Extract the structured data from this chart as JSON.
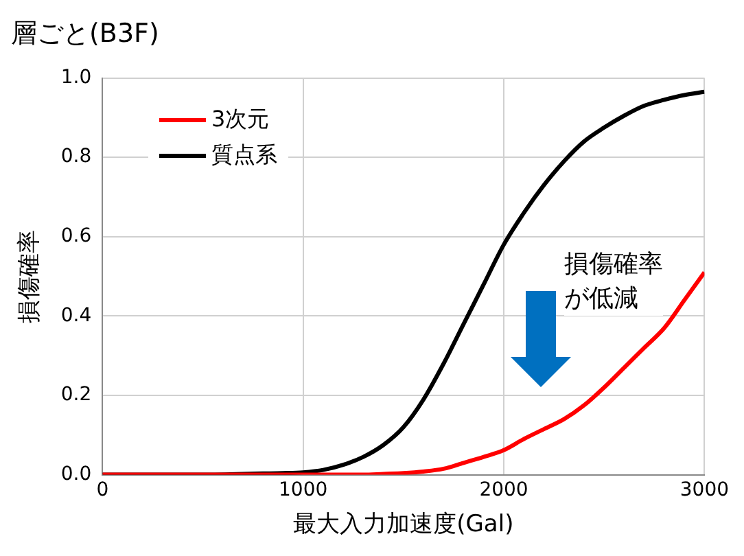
{
  "chart_data": {
    "type": "line",
    "title": "層ごと(B3F)",
    "xlabel": "最大入力加速度(Gal)",
    "ylabel": "損傷確率",
    "x": [
      0,
      500,
      800,
      900,
      1000,
      1100,
      1200,
      1300,
      1400,
      1500,
      1600,
      1700,
      1800,
      1900,
      2000,
      2100,
      2200,
      2300,
      2400,
      2500,
      2600,
      2700,
      2800,
      2900,
      3000
    ],
    "series": [
      {
        "name": "3次元",
        "color": "#ff0000",
        "values": [
          0,
          0,
          0,
          0,
          0,
          0,
          0,
          0,
          0.002,
          0.004,
          0.008,
          0.015,
          0.03,
          0.045,
          0.062,
          0.09,
          0.115,
          0.14,
          0.175,
          0.22,
          0.27,
          0.32,
          0.37,
          0.44,
          0.51
        ]
      },
      {
        "name": "質点系",
        "color": "#000000",
        "values": [
          0,
          0,
          0.003,
          0.004,
          0.006,
          0.012,
          0.025,
          0.045,
          0.075,
          0.12,
          0.19,
          0.28,
          0.38,
          0.48,
          0.58,
          0.66,
          0.73,
          0.79,
          0.84,
          0.875,
          0.905,
          0.93,
          0.945,
          0.957,
          0.965
        ]
      }
    ],
    "xlim": [
      0,
      3000
    ],
    "xticks": [
      0,
      1000,
      2000,
      3000
    ],
    "ylim": [
      0,
      1
    ],
    "yticks": [
      {
        "value": 0,
        "label": "0.0"
      },
      {
        "value": 0.2,
        "label": "0.2"
      },
      {
        "value": 0.4,
        "label": "0.4"
      },
      {
        "value": 0.6,
        "label": "0.6"
      },
      {
        "value": 0.8,
        "label": "0.8"
      },
      {
        "value": 1,
        "label": "1.0"
      }
    ],
    "grid": true,
    "legend": "top left",
    "marker": "none",
    "line_style": "solid",
    "annotations": [
      "損傷確率が低減"
    ]
  }
}
